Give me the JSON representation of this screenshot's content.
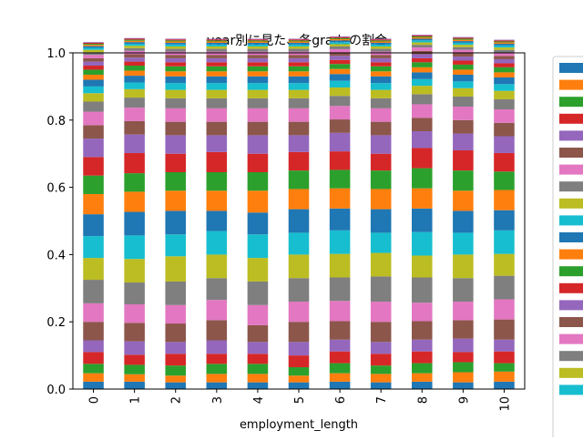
{
  "chart_data": {
    "type": "bar",
    "stacked": true,
    "title": "year別に見た、各gradeの割合",
    "xlabel": "employment_length",
    "ylabel": "",
    "categories": [
      "0",
      "1",
      "2",
      "3",
      "4",
      "5",
      "6",
      "7",
      "8",
      "9",
      "10"
    ],
    "ylim": [
      0,
      1.0
    ],
    "yticks": [
      "0.0",
      "0.2",
      "0.4",
      "0.6",
      "0.8",
      "1.0"
    ],
    "grid": false,
    "legend_position": "right (partially cut off, labels not visible)",
    "colors": [
      "#1f77b4",
      "#ff7f0e",
      "#2ca02c",
      "#d62728",
      "#9467bd",
      "#8c564b",
      "#e377c2",
      "#7f7f7f",
      "#bcbd22",
      "#17becf"
    ],
    "series": [
      {
        "values": [
          0.022,
          0.022,
          0.02,
          0.02,
          0.02,
          0.02,
          0.022,
          0.02,
          0.022,
          0.02,
          0.022
        ]
      },
      {
        "values": [
          0.025,
          0.022,
          0.02,
          0.025,
          0.025,
          0.02,
          0.025,
          0.025,
          0.025,
          0.03,
          0.03
        ]
      },
      {
        "values": [
          0.028,
          0.028,
          0.03,
          0.03,
          0.03,
          0.025,
          0.03,
          0.025,
          0.03,
          0.03,
          0.025
        ]
      },
      {
        "values": [
          0.035,
          0.03,
          0.035,
          0.03,
          0.03,
          0.035,
          0.035,
          0.035,
          0.035,
          0.03,
          0.035
        ]
      },
      {
        "values": [
          0.035,
          0.04,
          0.035,
          0.04,
          0.035,
          0.04,
          0.035,
          0.035,
          0.035,
          0.04,
          0.035
        ]
      },
      {
        "values": [
          0.055,
          0.055,
          0.055,
          0.06,
          0.05,
          0.06,
          0.055,
          0.06,
          0.055,
          0.055,
          0.06
        ]
      },
      {
        "values": [
          0.055,
          0.055,
          0.055,
          0.06,
          0.06,
          0.06,
          0.06,
          0.06,
          0.055,
          0.055,
          0.06
        ]
      },
      {
        "values": [
          0.07,
          0.065,
          0.07,
          0.065,
          0.07,
          0.07,
          0.07,
          0.075,
          0.075,
          0.07,
          0.07
        ]
      },
      {
        "values": [
          0.065,
          0.07,
          0.075,
          0.07,
          0.07,
          0.07,
          0.07,
          0.07,
          0.065,
          0.07,
          0.065
        ]
      },
      {
        "values": [
          0.065,
          0.07,
          0.065,
          0.07,
          0.07,
          0.065,
          0.07,
          0.06,
          0.07,
          0.065,
          0.07
        ]
      },
      {
        "values": [
          0.065,
          0.07,
          0.07,
          0.06,
          0.065,
          0.07,
          0.065,
          0.07,
          0.07,
          0.065,
          0.06
        ]
      },
      {
        "values": [
          0.06,
          0.06,
          0.06,
          0.06,
          0.065,
          0.06,
          0.06,
          0.06,
          0.06,
          0.06,
          0.06
        ]
      },
      {
        "values": [
          0.055,
          0.055,
          0.055,
          0.055,
          0.055,
          0.055,
          0.055,
          0.055,
          0.06,
          0.06,
          0.055
        ]
      },
      {
        "values": [
          0.055,
          0.06,
          0.055,
          0.06,
          0.055,
          0.055,
          0.055,
          0.05,
          0.06,
          0.06,
          0.055
        ]
      },
      {
        "values": [
          0.055,
          0.055,
          0.055,
          0.05,
          0.055,
          0.05,
          0.055,
          0.055,
          0.05,
          0.05,
          0.05
        ]
      },
      {
        "values": [
          0.04,
          0.04,
          0.04,
          0.04,
          0.04,
          0.04,
          0.04,
          0.04,
          0.04,
          0.04,
          0.04
        ]
      },
      {
        "values": [
          0.04,
          0.04,
          0.04,
          0.04,
          0.04,
          0.04,
          0.04,
          0.04,
          0.04,
          0.04,
          0.04
        ]
      },
      {
        "values": [
          0.03,
          0.03,
          0.03,
          0.03,
          0.03,
          0.03,
          0.03,
          0.03,
          0.03,
          0.03,
          0.03
        ]
      },
      {
        "values": [
          0.025,
          0.025,
          0.025,
          0.025,
          0.025,
          0.025,
          0.025,
          0.025,
          0.025,
          0.025,
          0.025
        ]
      },
      {
        "values": [
          0.02,
          0.02,
          0.02,
          0.02,
          0.02,
          0.02,
          0.02,
          0.02,
          0.02,
          0.02,
          0.02
        ]
      },
      {
        "values": [
          0.02,
          0.02,
          0.02,
          0.02,
          0.02,
          0.02,
          0.02,
          0.02,
          0.02,
          0.02,
          0.02
        ]
      },
      {
        "values": [
          0.015,
          0.015,
          0.015,
          0.015,
          0.015,
          0.015,
          0.015,
          0.015,
          0.015,
          0.015,
          0.015
        ]
      },
      {
        "values": [
          0.015,
          0.015,
          0.015,
          0.015,
          0.015,
          0.015,
          0.015,
          0.015,
          0.015,
          0.015,
          0.015
        ]
      },
      {
        "values": [
          0.012,
          0.012,
          0.012,
          0.012,
          0.012,
          0.012,
          0.012,
          0.012,
          0.012,
          0.012,
          0.012
        ]
      },
      {
        "values": [
          0.012,
          0.012,
          0.012,
          0.012,
          0.012,
          0.012,
          0.012,
          0.012,
          0.012,
          0.012,
          0.012
        ]
      },
      {
        "values": [
          0.01,
          0.01,
          0.01,
          0.01,
          0.01,
          0.01,
          0.01,
          0.01,
          0.01,
          0.01,
          0.01
        ]
      },
      {
        "values": [
          0.01,
          0.01,
          0.01,
          0.01,
          0.01,
          0.01,
          0.01,
          0.01,
          0.01,
          0.01,
          0.01
        ]
      },
      {
        "values": [
          0.008,
          0.008,
          0.008,
          0.008,
          0.008,
          0.008,
          0.008,
          0.008,
          0.008,
          0.008,
          0.008
        ]
      },
      {
        "values": [
          0.007,
          0.007,
          0.007,
          0.007,
          0.007,
          0.007,
          0.007,
          0.007,
          0.007,
          0.007,
          0.007
        ]
      },
      {
        "values": [
          0.006,
          0.006,
          0.006,
          0.006,
          0.006,
          0.006,
          0.006,
          0.006,
          0.006,
          0.006,
          0.006
        ]
      },
      {
        "values": [
          0.005,
          0.005,
          0.005,
          0.005,
          0.005,
          0.005,
          0.005,
          0.005,
          0.005,
          0.005,
          0.005
        ]
      },
      {
        "values": [
          0.004,
          0.004,
          0.004,
          0.004,
          0.004,
          0.004,
          0.004,
          0.004,
          0.004,
          0.004,
          0.004
        ]
      },
      {
        "values": [
          0.003,
          0.003,
          0.003,
          0.003,
          0.003,
          0.003,
          0.003,
          0.003,
          0.003,
          0.003,
          0.003
        ]
      },
      {
        "values": [
          0.003,
          0.003,
          0.003,
          0.003,
          0.003,
          0.003,
          0.003,
          0.003,
          0.003,
          0.003,
          0.003
        ]
      },
      {
        "values": [
          0.002,
          0.002,
          0.002,
          0.002,
          0.002,
          0.002,
          0.002,
          0.002,
          0.002,
          0.002,
          0.002
        ]
      }
    ]
  }
}
